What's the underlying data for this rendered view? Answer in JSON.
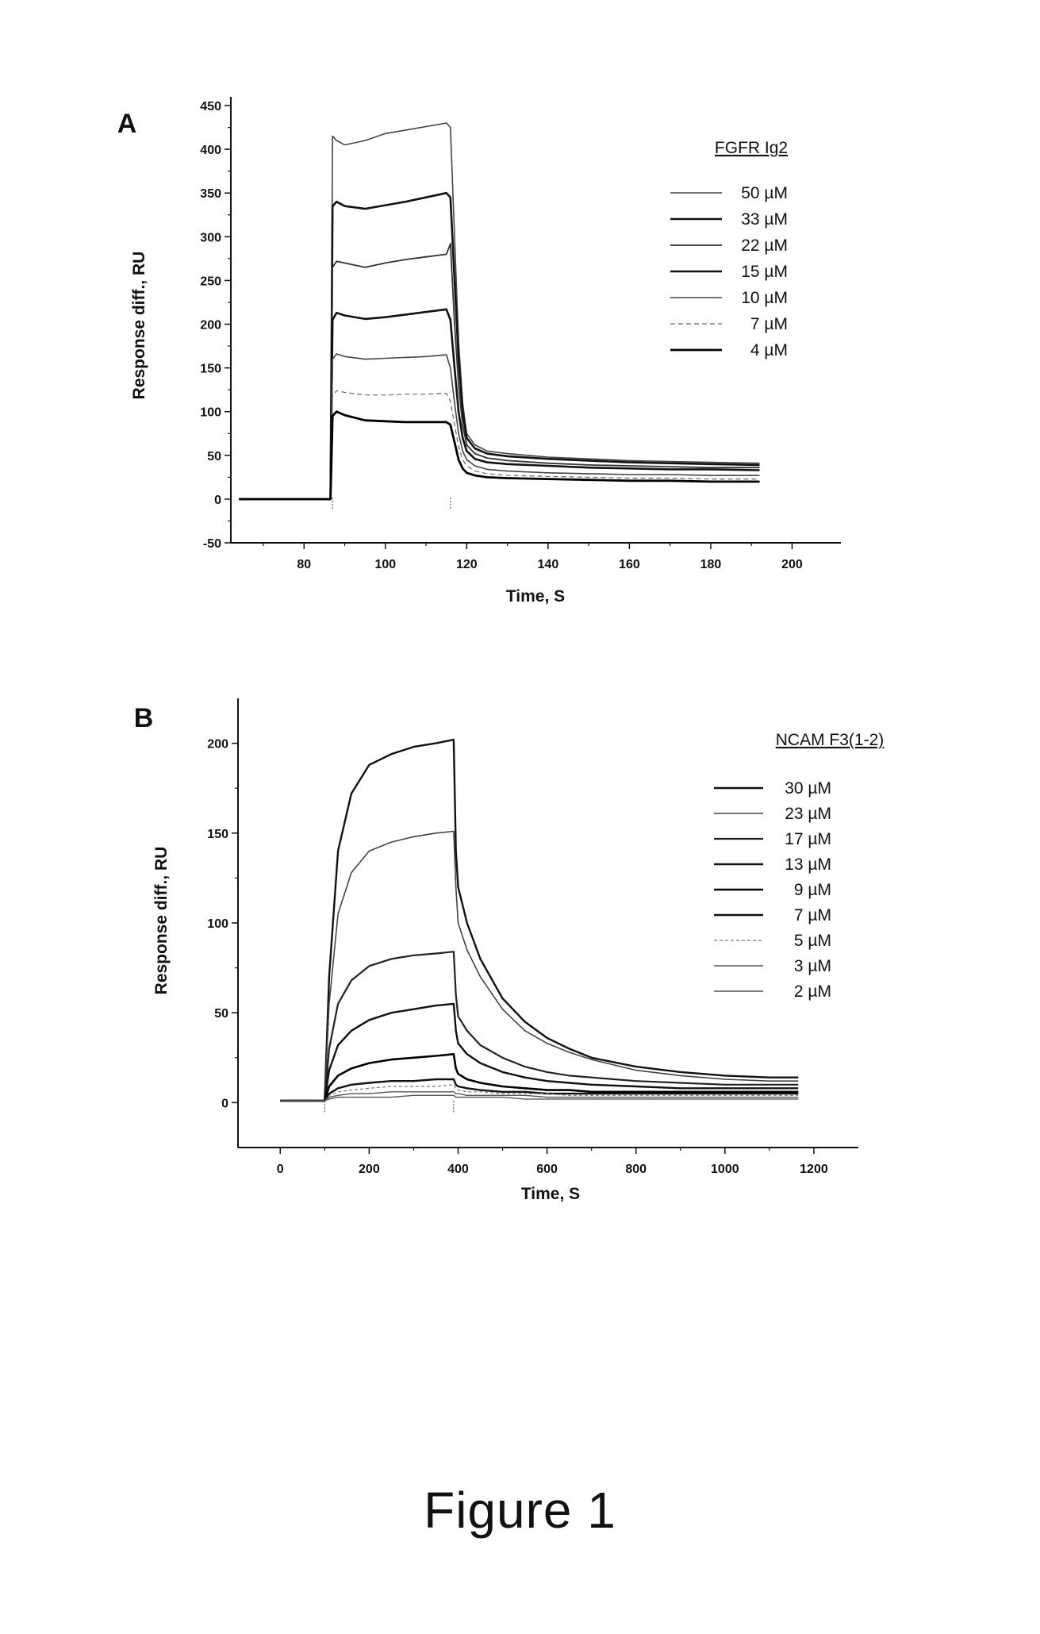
{
  "figure": {
    "caption": "Figure 1"
  },
  "chart_data": [
    {
      "type": "line",
      "panel_letter": "A",
      "title": "",
      "legend_title": "FGFR Ig2",
      "xlabel": "Time, S",
      "ylabel": "Response diff., RU",
      "xlim": [
        62,
        212
      ],
      "ylim": [
        -50,
        460
      ],
      "xticks": [
        80,
        100,
        120,
        140,
        160,
        180,
        200
      ],
      "yticks": [
        -50,
        0,
        50,
        100,
        150,
        200,
        250,
        300,
        350,
        400,
        450
      ],
      "legend_position": "top-right",
      "injection_start": 87,
      "injection_end": 116,
      "series": [
        {
          "name": "50 µM",
          "x": [
            64,
            86.5,
            87,
            88,
            90,
            95,
            100,
            105,
            110,
            115,
            116,
            117,
            118,
            119,
            120,
            122,
            125,
            130,
            140,
            150,
            160,
            170,
            180,
            192
          ],
          "y": [
            0,
            0,
            415,
            410,
            405,
            410,
            418,
            422,
            426,
            430,
            425,
            300,
            180,
            110,
            75,
            62,
            55,
            52,
            48,
            46,
            44,
            43,
            42,
            41
          ]
        },
        {
          "name": "33 µM",
          "x": [
            64,
            86.5,
            87,
            88,
            90,
            95,
            100,
            105,
            110,
            115,
            116,
            117,
            118,
            119,
            120,
            122,
            125,
            130,
            140,
            150,
            160,
            170,
            180,
            192
          ],
          "y": [
            0,
            0,
            335,
            340,
            335,
            332,
            336,
            340,
            345,
            350,
            345,
            250,
            160,
            100,
            70,
            58,
            52,
            49,
            46,
            44,
            42,
            41,
            40,
            39
          ]
        },
        {
          "name": "22 µM",
          "x": [
            64,
            86.5,
            87,
            88,
            90,
            95,
            100,
            105,
            110,
            115,
            116,
            117,
            118,
            119,
            120,
            122,
            125,
            130,
            140,
            150,
            160,
            170,
            180,
            192
          ],
          "y": [
            0,
            0,
            265,
            272,
            270,
            265,
            270,
            274,
            277,
            280,
            292,
            200,
            130,
            85,
            62,
            52,
            47,
            44,
            41,
            39,
            38,
            37,
            36,
            36
          ]
        },
        {
          "name": "15 µM",
          "x": [
            64,
            86.5,
            87,
            88,
            90,
            95,
            100,
            105,
            110,
            115,
            116,
            117,
            118,
            119,
            120,
            122,
            125,
            130,
            140,
            150,
            160,
            170,
            180,
            192
          ],
          "y": [
            0,
            0,
            205,
            213,
            210,
            206,
            208,
            211,
            214,
            217,
            205,
            150,
            100,
            70,
            55,
            46,
            42,
            40,
            38,
            36,
            35,
            34,
            34,
            33
          ]
        },
        {
          "name": "10 µM",
          "x": [
            64,
            86.5,
            87,
            88,
            90,
            95,
            100,
            105,
            110,
            115,
            116,
            117,
            118,
            119,
            120,
            122,
            125,
            130,
            140,
            150,
            160,
            170,
            180,
            192
          ],
          "y": [
            0,
            0,
            160,
            166,
            163,
            160,
            161,
            162,
            163,
            165,
            150,
            110,
            75,
            55,
            45,
            38,
            34,
            32,
            30,
            29,
            28,
            28,
            27,
            27
          ]
        },
        {
          "name": "7 µM",
          "x": [
            64,
            86.5,
            87,
            88,
            90,
            95,
            100,
            105,
            110,
            115,
            116,
            117,
            118,
            119,
            120,
            122,
            125,
            130,
            140,
            150,
            160,
            170,
            180,
            192
          ],
          "y": [
            0,
            0,
            118,
            124,
            122,
            119,
            119,
            120,
            120,
            121,
            112,
            85,
            60,
            45,
            38,
            32,
            29,
            27,
            26,
            25,
            24,
            24,
            23,
            23
          ]
        },
        {
          "name": "4 µM",
          "x": [
            64,
            86.5,
            87,
            88,
            90,
            95,
            100,
            105,
            110,
            115,
            116,
            117,
            118,
            119,
            120,
            122,
            125,
            130,
            140,
            150,
            160,
            170,
            180,
            192
          ],
          "y": [
            0,
            0,
            95,
            100,
            96,
            90,
            89,
            88,
            88,
            88,
            85,
            65,
            45,
            35,
            30,
            27,
            25,
            24,
            23,
            22,
            21,
            21,
            20,
            20
          ]
        }
      ]
    },
    {
      "type": "line",
      "panel_letter": "B",
      "title": "",
      "legend_title": "NCAM F3(1-2)",
      "xlabel": "Time, S",
      "ylabel": "Response diff., RU",
      "xlim": [
        -95,
        1300
      ],
      "ylim": [
        -25,
        225
      ],
      "xticks": [
        0,
        200,
        400,
        600,
        800,
        1000,
        1200
      ],
      "yticks": [
        0,
        50,
        100,
        150,
        200
      ],
      "legend_position": "top-right",
      "injection_start": 100,
      "injection_end": 390,
      "series": [
        {
          "name": "30 µM",
          "x": [
            0,
            100,
            110,
            130,
            160,
            200,
            250,
            300,
            350,
            390,
            395,
            400,
            420,
            450,
            500,
            550,
            600,
            650,
            700,
            800,
            900,
            1000,
            1100,
            1165
          ],
          "y": [
            1,
            1,
            70,
            140,
            172,
            188,
            194,
            198,
            200,
            202,
            140,
            120,
            100,
            80,
            58,
            45,
            36,
            30,
            25,
            20,
            17,
            15,
            14,
            14
          ]
        },
        {
          "name": "23 µM",
          "x": [
            0,
            100,
            110,
            130,
            160,
            200,
            250,
            300,
            350,
            390,
            395,
            400,
            420,
            450,
            500,
            550,
            600,
            650,
            700,
            800,
            900,
            1000,
            1100,
            1165
          ],
          "y": [
            1,
            1,
            55,
            105,
            128,
            140,
            145,
            148,
            150,
            151,
            120,
            100,
            85,
            70,
            52,
            40,
            33,
            28,
            24,
            18,
            15,
            13,
            12,
            12
          ]
        },
        {
          "name": "17 µM",
          "x": [
            0,
            100,
            110,
            130,
            160,
            200,
            250,
            300,
            350,
            390,
            395,
            400,
            420,
            450,
            500,
            550,
            600,
            650,
            700,
            800,
            900,
            1000,
            1100,
            1165
          ],
          "y": [
            1,
            1,
            30,
            55,
            68,
            76,
            80,
            82,
            83,
            84,
            60,
            48,
            40,
            32,
            25,
            20,
            17,
            15,
            14,
            12,
            11,
            10,
            10,
            10
          ]
        },
        {
          "name": "13 µM",
          "x": [
            0,
            100,
            110,
            130,
            160,
            200,
            250,
            300,
            350,
            390,
            395,
            400,
            420,
            450,
            500,
            550,
            600,
            650,
            700,
            800,
            900,
            1000,
            1100,
            1165
          ],
          "y": [
            1,
            1,
            18,
            32,
            40,
            46,
            50,
            52,
            54,
            55,
            40,
            33,
            27,
            22,
            17,
            14,
            12,
            11,
            10,
            9,
            8,
            8,
            8,
            8
          ]
        },
        {
          "name": "9 µM",
          "x": [
            0,
            100,
            110,
            130,
            160,
            200,
            250,
            300,
            350,
            390,
            395,
            400,
            420,
            450,
            500,
            550,
            600,
            650,
            700,
            800,
            900,
            1000,
            1100,
            1165
          ],
          "y": [
            1,
            1,
            9,
            15,
            19,
            22,
            24,
            25,
            26,
            27,
            19,
            16,
            13,
            11,
            9,
            8,
            7,
            7,
            6,
            6,
            6,
            6,
            6,
            6
          ]
        },
        {
          "name": "7 µM",
          "x": [
            0,
            100,
            110,
            130,
            160,
            200,
            250,
            300,
            350,
            390,
            395,
            400,
            420,
            450,
            500,
            550,
            600,
            650,
            700,
            800,
            900,
            1000,
            1100,
            1165
          ],
          "y": [
            1,
            1,
            5,
            8,
            10,
            11,
            12,
            12,
            13,
            13,
            10,
            9,
            8,
            7,
            6,
            6,
            5,
            5,
            5,
            5,
            5,
            5,
            5,
            5
          ]
        },
        {
          "name": "5 µM",
          "x": [
            0,
            100,
            110,
            130,
            160,
            200,
            250,
            300,
            350,
            390,
            395,
            400,
            420,
            450,
            500,
            550,
            600,
            650,
            700,
            800,
            900,
            1000,
            1100,
            1165
          ],
          "y": [
            1,
            1,
            4,
            6,
            7,
            8,
            9,
            9,
            9,
            10,
            8,
            7,
            6,
            6,
            5,
            5,
            5,
            4,
            4,
            4,
            4,
            4,
            4,
            4
          ]
        },
        {
          "name": "3 µM",
          "x": [
            0,
            100,
            110,
            130,
            160,
            200,
            250,
            300,
            350,
            390,
            395,
            400,
            420,
            450,
            500,
            550,
            600,
            650,
            700,
            800,
            900,
            1000,
            1100,
            1165
          ],
          "y": [
            1,
            1,
            3,
            4,
            5,
            5,
            6,
            6,
            6,
            6,
            5,
            5,
            4,
            4,
            4,
            4,
            3,
            3,
            3,
            3,
            3,
            3,
            3,
            3
          ]
        },
        {
          "name": "2 µM",
          "x": [
            0,
            100,
            110,
            130,
            160,
            200,
            250,
            300,
            350,
            390,
            395,
            400,
            420,
            450,
            500,
            550,
            600,
            650,
            700,
            800,
            900,
            1000,
            1100,
            1165
          ],
          "y": [
            1,
            1,
            2,
            3,
            3,
            3,
            3,
            4,
            4,
            4,
            3,
            3,
            3,
            3,
            3,
            2,
            2,
            2,
            2,
            2,
            2,
            2,
            2,
            2
          ]
        }
      ]
    }
  ]
}
